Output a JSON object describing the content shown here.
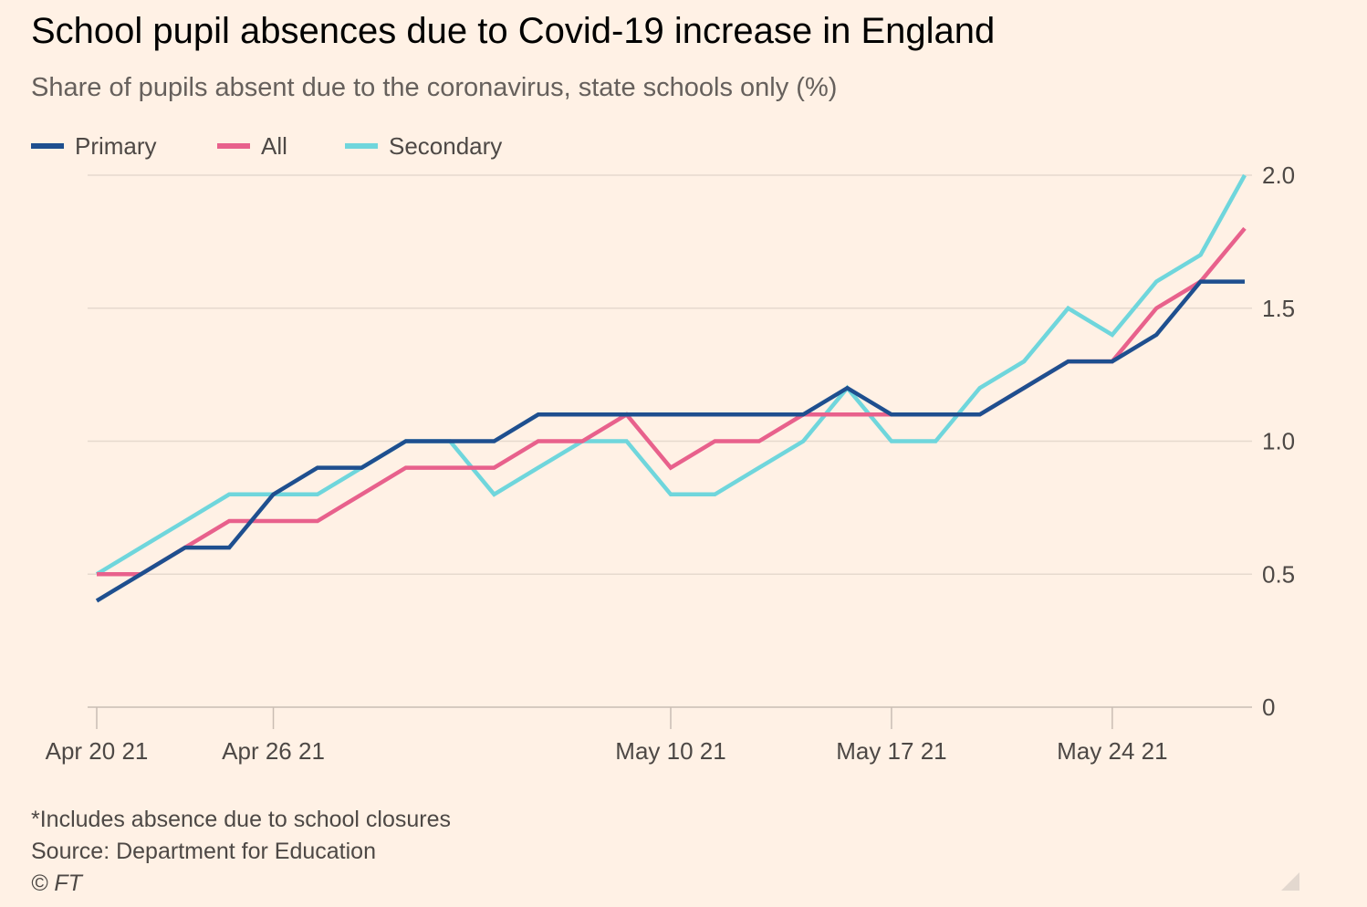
{
  "title": "School pupil absences due to Covid-19 increase in England",
  "subtitle": "Share of pupils absent due to the coronavirus, state schools only (%)",
  "footer": {
    "note": "*Includes absence due to school closures",
    "source": "Source: Department for Education",
    "copyright": "© FT"
  },
  "colors": {
    "background": "#fff1e5",
    "grid": "#e6d9ce",
    "axis": "#c9bdb3"
  },
  "chart_data": {
    "type": "line",
    "x": [
      "Apr 20 21",
      "Apr 21 21",
      "Apr 22 21",
      "Apr 23 21",
      "Apr 26 21",
      "Apr 27 21",
      "Apr 28 21",
      "Apr 29 21",
      "Apr 30 21",
      "May 4 21",
      "May 5 21",
      "May 6 21",
      "May 7 21",
      "May 10 21",
      "May 11 21",
      "May 12 21",
      "May 13 21",
      "May 14 21",
      "May 17 21",
      "May 18 21",
      "May 19 21",
      "May 20 21",
      "May 21 21",
      "May 24 21",
      "May 25 21",
      "May 26 21",
      "May 27 21"
    ],
    "x_ticks": [
      {
        "index": 0,
        "label": "Apr 20 21"
      },
      {
        "index": 4,
        "label": "Apr 26 21"
      },
      {
        "index": 13,
        "label": "May 10 21"
      },
      {
        "index": 18,
        "label": "May 17 21"
      },
      {
        "index": 23,
        "label": "May 24 21"
      }
    ],
    "series": [
      {
        "name": "Primary",
        "color": "#1e4f8f",
        "values": [
          0.4,
          0.5,
          0.6,
          0.6,
          0.8,
          0.9,
          0.9,
          1.0,
          1.0,
          1.0,
          1.1,
          1.1,
          1.1,
          1.1,
          1.1,
          1.1,
          1.1,
          1.2,
          1.1,
          1.1,
          1.1,
          1.2,
          1.3,
          1.3,
          1.4,
          1.6,
          1.6
        ]
      },
      {
        "name": "All",
        "color": "#e8618c",
        "values": [
          0.5,
          0.5,
          0.6,
          0.7,
          0.7,
          0.7,
          0.8,
          0.9,
          0.9,
          0.9,
          1.0,
          1.0,
          1.1,
          0.9,
          1.0,
          1.0,
          1.1,
          1.1,
          1.1,
          1.1,
          1.1,
          1.2,
          1.3,
          1.3,
          1.5,
          1.6,
          1.8
        ]
      },
      {
        "name": "Secondary",
        "color": "#6fd6dc",
        "values": [
          0.5,
          0.6,
          0.7,
          0.8,
          0.8,
          0.8,
          0.9,
          1.0,
          1.0,
          0.8,
          0.9,
          1.0,
          1.0,
          0.8,
          0.8,
          0.9,
          1.0,
          1.2,
          1.0,
          1.0,
          1.2,
          1.3,
          1.5,
          1.4,
          1.6,
          1.7,
          2.0
        ]
      }
    ],
    "y_ticks": [
      0,
      0.5,
      1.0,
      1.5,
      2.0
    ],
    "y_tick_labels": [
      "0",
      "0.5",
      "1.0",
      "1.5",
      "2.0"
    ],
    "ylim": [
      0,
      2.0
    ],
    "grid": true,
    "y_axis_side": "right",
    "legend_position": "top-left"
  }
}
